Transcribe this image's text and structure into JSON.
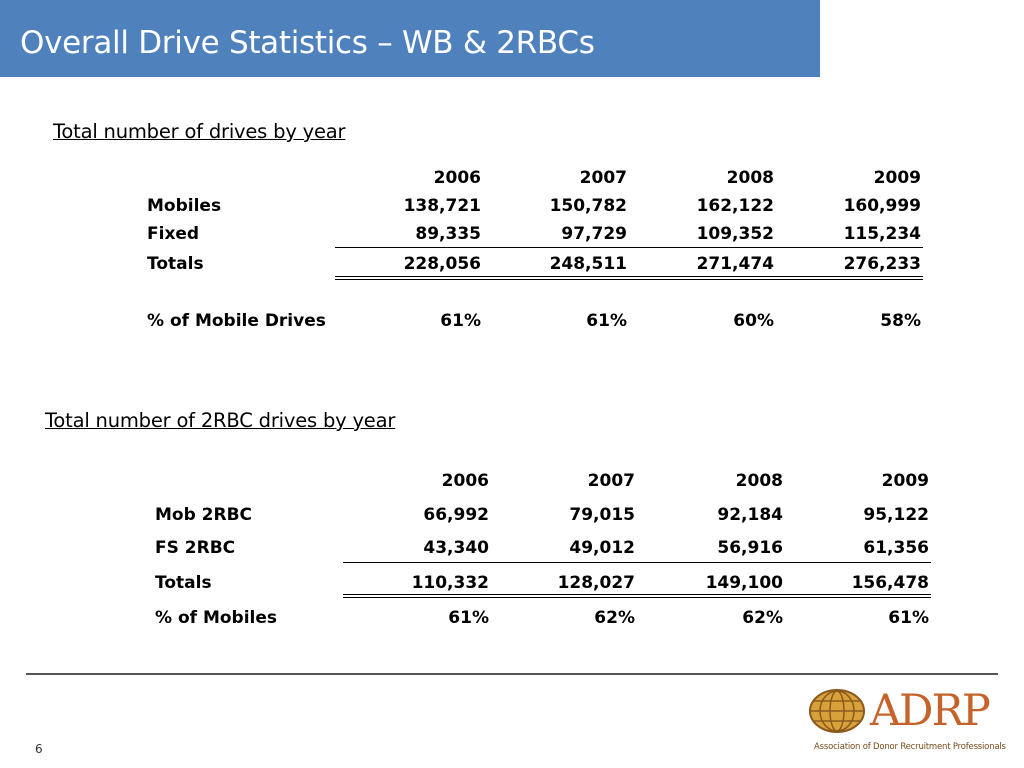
{
  "slide": {
    "title": "Overall Drive Statistics – WB & 2RBCs",
    "page_number": "6"
  },
  "table1": {
    "heading": "Total number of drives by year",
    "years": [
      "2006",
      "2007",
      "2008",
      "2009"
    ],
    "rows": [
      {
        "label": "Mobiles",
        "values": [
          "138,721",
          "150,782",
          "162,122",
          "160,999"
        ]
      },
      {
        "label": "Fixed",
        "values": [
          "89,335",
          "97,729",
          "109,352",
          "115,234"
        ]
      },
      {
        "label": "Totals",
        "values": [
          "228,056",
          "248,511",
          "271,474",
          "276,233"
        ]
      },
      {
        "label": "% of Mobile Drives",
        "values": [
          "61%",
          "61%",
          "60%",
          "58%"
        ]
      }
    ]
  },
  "table2": {
    "heading": "Total number of 2RBC drives by year",
    "years": [
      "2006",
      "2007",
      "2008",
      "2009"
    ],
    "rows": [
      {
        "label": "Mob 2RBC",
        "values": [
          "66,992",
          "79,015",
          "92,184",
          "95,122"
        ]
      },
      {
        "label": "FS 2RBC",
        "values": [
          "43,340",
          "49,012",
          "56,916",
          "61,356"
        ]
      },
      {
        "label": "Totals",
        "values": [
          "110,332",
          "128,027",
          "149,100",
          "156,478"
        ]
      },
      {
        "label": "% of Mobiles",
        "values": [
          "61%",
          "62%",
          "62%",
          "61%"
        ]
      }
    ]
  },
  "logo": {
    "wordmark": "ADRP",
    "tagline": "Association of Donor Recruitment Professionals",
    "colors": {
      "wordmark": "#c6632b",
      "globe": "#d9a13a",
      "globe_grid": "#8a5a1c"
    }
  },
  "colors": {
    "title_bar": "#4f81bd",
    "title_text": "#ffffff"
  }
}
